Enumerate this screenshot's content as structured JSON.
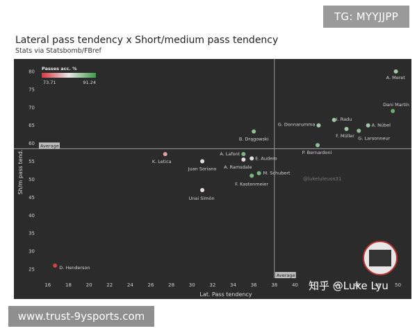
{
  "watermark_top": "TG: MYYJJPP",
  "watermark_bottom": "www.trust-9ysports.com",
  "chart_data": {
    "type": "scatter",
    "title": "Lateral pass tendency x Short/medium pass tendency",
    "subtitle": "Stats via Statsbomb/FBref",
    "xlabel": "Lat. Pass tendency",
    "ylabel": "Sh/m pass tend.",
    "xlim": [
      15,
      50.5
    ],
    "ylim": [
      22.5,
      82.5
    ],
    "xticks": [
      16,
      18,
      20,
      22,
      24,
      26,
      28,
      30,
      32,
      34,
      36,
      38,
      40,
      42,
      44,
      46,
      48,
      50
    ],
    "yticks": [
      25,
      30,
      35,
      40,
      45,
      50,
      55,
      60,
      65,
      70,
      75,
      80
    ],
    "averages": {
      "x": 38,
      "y": 58.5,
      "label": "Average"
    },
    "grid": false,
    "color_legend": {
      "title": "Passes acc. %",
      "min": "73.71",
      "max": "91.24",
      "low_color": "#d9363e",
      "high_color": "#3e9a4a"
    },
    "points": [
      {
        "name": "A. Meret",
        "x": 49.8,
        "y": 80,
        "acc": 86
      },
      {
        "name": "Dani Martín",
        "x": 49.5,
        "y": 69,
        "acc": 89
      },
      {
        "name": "I. Radu",
        "x": 43.8,
        "y": 66.5,
        "acc": 86
      },
      {
        "name": "G. Donnarumma",
        "x": 42.3,
        "y": 65,
        "acc": 86
      },
      {
        "name": "A. Nübel",
        "x": 47.1,
        "y": 65,
        "acc": 86
      },
      {
        "name": "F. Müller",
        "x": 45,
        "y": 64,
        "acc": 86
      },
      {
        "name": "G. Larsonneur",
        "x": 46.2,
        "y": 63.5,
        "acc": 87
      },
      {
        "name": "B. Drągowski",
        "x": 36,
        "y": 63.3,
        "acc": 87
      },
      {
        "name": "P. Bernardoni",
        "x": 42.2,
        "y": 59.5,
        "acc": 87
      },
      {
        "name": "A. Lafont",
        "x": 35,
        "y": 57,
        "acc": 88
      },
      {
        "name": "E. Audero",
        "x": 35.8,
        "y": 55.8,
        "acc": 83
      },
      {
        "name": "A. Ramsdale",
        "x": 35,
        "y": 55.5,
        "acc": 82
      },
      {
        "name": "K. Letica",
        "x": 27.4,
        "y": 57,
        "acc": 79
      },
      {
        "name": "Juan Soriano",
        "x": 31,
        "y": 55,
        "acc": 83
      },
      {
        "name": "M. Schubert",
        "x": 36.5,
        "y": 51.7,
        "acc": 88
      },
      {
        "name": "F. Kastenmeier",
        "x": 35.8,
        "y": 51,
        "acc": 88
      },
      {
        "name": "Unai Simón",
        "x": 31,
        "y": 47,
        "acc": 82
      },
      {
        "name": "D. Henderson",
        "x": 16.7,
        "y": 26,
        "acc": 74
      }
    ],
    "annotations": [
      "@lukeluleuos31",
      "知乎 @Luke Lyu"
    ]
  }
}
